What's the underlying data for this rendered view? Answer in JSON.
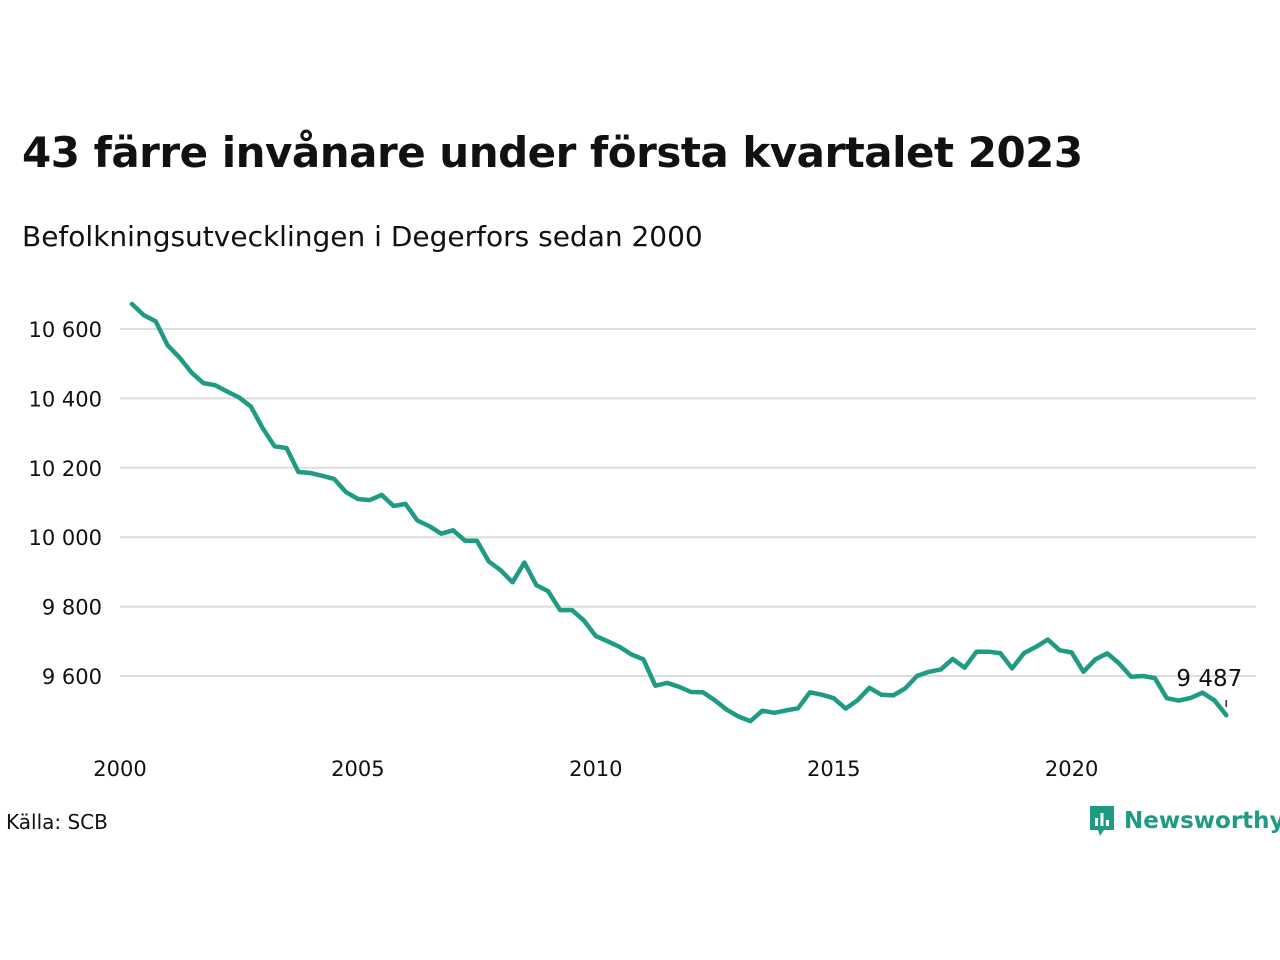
{
  "title": "43 färre invånare under första kvartalet 2023",
  "subtitle": "Befolkningsutvecklingen i Degerfors sedan 2000",
  "source": "Källa: SCB",
  "brand": {
    "name": "Newsworthy",
    "icon": "newsworthy-logo-icon",
    "color": "#1f9b83"
  },
  "colors": {
    "line": "#1f9b83",
    "grid": "#dddddd"
  },
  "chart_data": {
    "type": "line",
    "title": "43 färre invånare under första kvartalet 2023",
    "xlabel": "",
    "ylabel": "",
    "xlim": [
      2000,
      2023.25
    ],
    "ylim": [
      9450,
      10700
    ],
    "grid": true,
    "x_ticks": [
      2000,
      2005,
      2010,
      2015,
      2020
    ],
    "x_tick_labels": [
      "2000",
      "2005",
      "2010",
      "2015",
      "2020"
    ],
    "y_ticks": [
      9600,
      9800,
      10000,
      10200,
      10400,
      10600
    ],
    "y_tick_labels": [
      "9 600",
      "9 800",
      "10 000",
      "10 200",
      "10 400",
      "10 600"
    ],
    "end_label": "9 487",
    "series": [
      {
        "x": [
          2000.25,
          2000.5,
          2000.75,
          2001,
          2001.25,
          2001.5,
          2001.75,
          2002,
          2002.25,
          2002.5,
          2002.75,
          2003,
          2003.25,
          2003.5,
          2003.75,
          2004,
          2004.25,
          2004.5,
          2004.75,
          2005,
          2005.25,
          2005.5,
          2005.75,
          2006,
          2006.25,
          2006.5,
          2006.75,
          2007,
          2007.25,
          2007.5,
          2007.75,
          2008,
          2008.25,
          2008.5,
          2008.75,
          2009,
          2009.25,
          2009.5,
          2009.75,
          2010,
          2010.25,
          2010.5,
          2010.75,
          2011,
          2011.25,
          2011.5,
          2011.75,
          2012,
          2012.25,
          2012.5,
          2012.75,
          2013,
          2013.25,
          2013.5,
          2013.75,
          2014,
          2014.25,
          2014.5,
          2014.75,
          2015,
          2015.25,
          2015.5,
          2015.75,
          2016,
          2016.25,
          2016.5,
          2016.75,
          2017,
          2017.25,
          2017.5,
          2017.75,
          2018,
          2018.25,
          2018.5,
          2018.75,
          2019,
          2019.25,
          2019.5,
          2019.75,
          2020,
          2020.25,
          2020.5,
          2020.75,
          2021,
          2021.25,
          2021.5,
          2021.75,
          2022,
          2022.25,
          2022.5,
          2022.75,
          2023,
          2023.25
        ],
        "values": [
          10672,
          10640,
          10622,
          10553,
          10518,
          10475,
          10444,
          10438,
          10420,
          10403,
          10377,
          10314,
          10262,
          10257,
          10188,
          10185,
          10177,
          10168,
          10130,
          10110,
          10107,
          10122,
          10090,
          10096,
          10048,
          10032,
          10010,
          10020,
          9990,
          9990,
          9930,
          9905,
          9870,
          9927,
          9862,
          9844,
          9790,
          9790,
          9760,
          9715,
          9700,
          9684,
          9662,
          9648,
          9572,
          9580,
          9569,
          9554,
          9553,
          9530,
          9503,
          9483,
          9470,
          9500,
          9494,
          9501,
          9507,
          9553,
          9546,
          9536,
          9506,
          9530,
          9566,
          9546,
          9544,
          9564,
          9600,
          9612,
          9619,
          9649,
          9624,
          9670,
          9670,
          9666,
          9622,
          9666,
          9684,
          9705,
          9674,
          9668,
          9612,
          9648,
          9665,
          9636,
          9598,
          9600,
          9594,
          9536,
          9529,
          9537,
          9552,
          9530,
          9487
        ]
      }
    ]
  }
}
